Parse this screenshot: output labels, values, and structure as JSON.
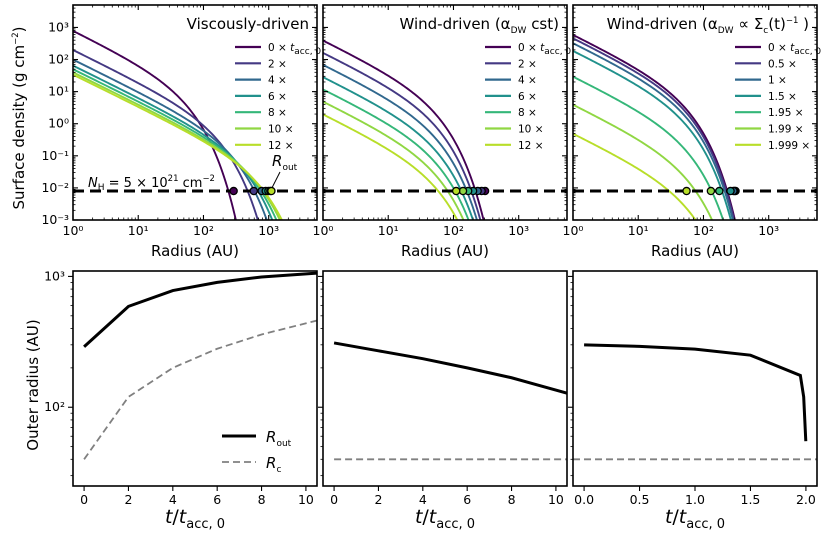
{
  "chart_data": [
    {
      "type": "line",
      "title": "Viscously-driven",
      "xlabel": "Radius (AU)",
      "ylabel": "Surface density (g cm⁻²)",
      "xscale": "log",
      "yscale": "log",
      "xlim": [
        1,
        5500
      ],
      "ylim": [
        0.001,
        5000
      ],
      "x_ticks": [
        "10⁰",
        "10¹",
        "10²",
        "10³"
      ],
      "y_ticks": [
        "10⁻³",
        "10⁻²",
        "10⁻¹",
        "10⁰",
        "10¹",
        "10²",
        "10³"
      ],
      "legend_position": "right",
      "threshold": {
        "label": "N_H = 5 × 10²¹ cm⁻²",
        "value": 0.008
      },
      "annotation": "R_out",
      "series": [
        {
          "name": "0 × t_acc,0",
          "color": "#440154",
          "sigma0": 800,
          "rc": 40,
          "rout": 290
        },
        {
          "name": "2 ×",
          "color": "#443983",
          "sigma0": 200,
          "rc": 120,
          "rout": 590
        },
        {
          "name": "4 ×",
          "color": "#31688e",
          "sigma0": 100,
          "rc": 200,
          "rout": 780
        },
        {
          "name": "6 ×",
          "color": "#21918c",
          "sigma0": 65,
          "rc": 280,
          "rout": 900
        },
        {
          "name": "8 ×",
          "color": "#35b779",
          "sigma0": 50,
          "rc": 360,
          "rout": 990
        },
        {
          "name": "10 ×",
          "color": "#90d743",
          "sigma0": 40,
          "rc": 450,
          "rout": 1060
        },
        {
          "name": "12 ×",
          "color": "#b8de29",
          "sigma0": 34,
          "rc": 520,
          "rout": 1100
        }
      ]
    },
    {
      "type": "line",
      "title": "Wind-driven (α_DW cst)",
      "xlabel": "Radius (AU)",
      "xscale": "log",
      "yscale": "log",
      "xlim": [
        1,
        5500
      ],
      "ylim": [
        0.001,
        5000
      ],
      "x_ticks": [
        "10⁰",
        "10¹",
        "10²",
        "10³"
      ],
      "legend_position": "right",
      "threshold": {
        "value": 0.008
      },
      "series": [
        {
          "name": "0 × t_acc,0",
          "color": "#440154",
          "sigma0": 400,
          "rc": 40,
          "rout": 305
        },
        {
          "name": "2 ×",
          "color": "#443983",
          "sigma0": 165,
          "rc": 40,
          "rout": 270
        },
        {
          "name": "4 ×",
          "color": "#31688e",
          "sigma0": 70,
          "rc": 40,
          "rout": 235
        },
        {
          "name": "6 ×",
          "color": "#21918c",
          "sigma0": 29,
          "rc": 40,
          "rout": 200
        },
        {
          "name": "8 ×",
          "color": "#35b779",
          "sigma0": 12,
          "rc": 40,
          "rout": 168
        },
        {
          "name": "10 ×",
          "color": "#90d743",
          "sigma0": 5,
          "rc": 40,
          "rout": 140
        },
        {
          "name": "12 ×",
          "color": "#b8de29",
          "sigma0": 2,
          "rc": 40,
          "rout": 110
        }
      ]
    },
    {
      "type": "line",
      "title": "Wind-driven (α_DW ∝ Σ_c(t)⁻¹ )",
      "xlabel": "Radius (AU)",
      "xscale": "log",
      "yscale": "log",
      "xlim": [
        1,
        5500
      ],
      "ylim": [
        0.001,
        5000
      ],
      "x_ticks": [
        "10⁰",
        "10¹",
        "10²",
        "10³"
      ],
      "legend_position": "right",
      "threshold": {
        "value": 0.008
      },
      "series": [
        {
          "name": "0 × t_acc,0",
          "color": "#440154",
          "sigma0": 600,
          "rc": 40,
          "rout": 310
        },
        {
          "name": "0.5 ×",
          "color": "#443983",
          "sigma0": 470,
          "rc": 40,
          "rout": 300
        },
        {
          "name": "1 ×",
          "color": "#31688e",
          "sigma0": 330,
          "rc": 40,
          "rout": 288
        },
        {
          "name": "1.5 ×",
          "color": "#21918c",
          "sigma0": 190,
          "rc": 40,
          "rout": 260
        },
        {
          "name": "1.95 ×",
          "color": "#35b779",
          "sigma0": 30,
          "rc": 40,
          "rout": 175
        },
        {
          "name": "1.99 ×",
          "color": "#90d743",
          "sigma0": 4,
          "rc": 40,
          "rout": 130
        },
        {
          "name": "1.999 ×",
          "color": "#b8de29",
          "sigma0": 0.5,
          "rc": 40,
          "rout": 55
        }
      ]
    },
    {
      "type": "line",
      "xlabel": "t/t_acc,0",
      "ylabel": "Outer radius (AU)",
      "yscale": "log",
      "ylim": [
        25,
        1100
      ],
      "xlim": [
        -0.5,
        10.5
      ],
      "x_ticks": [
        "0",
        "2",
        "4",
        "6",
        "8",
        "10"
      ],
      "y_ticks": [
        "10²",
        "10³"
      ],
      "legend_position": "lower-right",
      "series": [
        {
          "name": "R_out",
          "color": "#000000",
          "x": [
            0,
            2,
            4,
            6,
            8,
            10.5
          ],
          "y": [
            290,
            590,
            780,
            900,
            990,
            1060
          ]
        },
        {
          "name": "R_c",
          "color": "#808080",
          "x": [
            0,
            2,
            4,
            6,
            8,
            10.5
          ],
          "y": [
            40,
            120,
            200,
            280,
            360,
            460
          ]
        }
      ]
    },
    {
      "type": "line",
      "xlabel": "t/t_acc,0",
      "yscale": "log",
      "ylim": [
        25,
        1100
      ],
      "xlim": [
        -0.5,
        10.5
      ],
      "x_ticks": [
        "0",
        "2",
        "4",
        "6",
        "8",
        "10"
      ],
      "series": [
        {
          "name": "R_out",
          "color": "#000000",
          "x": [
            0,
            2,
            4,
            6,
            8,
            10.5
          ],
          "y": [
            310,
            270,
            235,
            200,
            168,
            128
          ]
        },
        {
          "name": "R_c",
          "color": "#808080",
          "x": [
            0,
            10.5
          ],
          "y": [
            40,
            40
          ]
        }
      ]
    },
    {
      "type": "line",
      "xlabel": "t/t_acc,0",
      "yscale": "log",
      "ylim": [
        25,
        1100
      ],
      "xlim": [
        -0.1,
        2.1
      ],
      "x_ticks": [
        "0.0",
        "0.5",
        "1.0",
        "1.5",
        "2.0"
      ],
      "series": [
        {
          "name": "R_out",
          "color": "#000000",
          "x": [
            0,
            0.5,
            1.0,
            1.5,
            1.95,
            1.98,
            1.999
          ],
          "y": [
            300,
            292,
            278,
            250,
            175,
            120,
            55
          ]
        },
        {
          "name": "R_c",
          "color": "#808080",
          "x": [
            -0.1,
            2.1
          ],
          "y": [
            40,
            40
          ]
        }
      ]
    }
  ]
}
